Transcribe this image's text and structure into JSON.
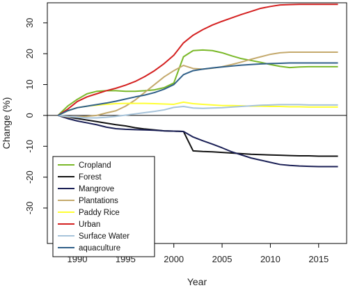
{
  "chart_data": {
    "type": "line",
    "title": "",
    "xlabel": "Year",
    "ylabel": "Change (%)",
    "xlim": [
      1986.9,
      2017.9
    ],
    "ylim": [
      -41.5,
      36.5
    ],
    "x_ticks": [
      1990,
      1995,
      2000,
      2005,
      2010,
      2015
    ],
    "y_ticks": [
      -30,
      -20,
      -10,
      0,
      10,
      20,
      30
    ],
    "zero_line": true,
    "grid": false,
    "legend_position": "bottom-left",
    "series": [
      {
        "name": "Cropland",
        "color": "#7ab828",
        "x": [
          1988,
          1989,
          1990,
          1991,
          1992,
          1993,
          1994,
          1995,
          1996,
          1997,
          1998,
          1999,
          2000,
          2001,
          2002,
          2003,
          2004,
          2005,
          2006,
          2007,
          2008,
          2009,
          2010,
          2011,
          2012,
          2013,
          2014,
          2015,
          2016,
          2017
        ],
        "y": [
          0,
          3,
          5.2,
          7,
          7.8,
          8,
          8,
          7.8,
          7.8,
          8,
          8.3,
          9,
          10.5,
          19,
          21,
          21.2,
          21,
          20.3,
          19.3,
          18.4,
          17.8,
          17.2,
          16.5,
          15.9,
          15.5,
          15.7,
          15.8,
          15.8,
          15.8,
          15.8
        ]
      },
      {
        "name": "Forest",
        "color": "#111111",
        "x": [
          1988,
          1989,
          1990,
          1991,
          1992,
          1993,
          1994,
          1995,
          1996,
          1997,
          1998,
          1999,
          2000,
          2001,
          2002,
          2003,
          2004,
          2005,
          2006,
          2007,
          2008,
          2009,
          2010,
          2011,
          2012,
          2013,
          2014,
          2015,
          2016,
          2017
        ],
        "y": [
          0,
          -0.5,
          -1,
          -1.5,
          -2,
          -2.5,
          -3,
          -3.4,
          -4,
          -4.4,
          -4.7,
          -5,
          -5.1,
          -5.2,
          -11.5,
          -11.7,
          -11.8,
          -12,
          -12.2,
          -12.4,
          -12.6,
          -12.7,
          -12.8,
          -12.9,
          -13,
          -13.1,
          -13.1,
          -13.2,
          -13.2,
          -13.2
        ]
      },
      {
        "name": "Mangrove",
        "color": "#1a1f55",
        "x": [
          1988,
          1989,
          1990,
          1991,
          1992,
          1993,
          1994,
          1995,
          1996,
          1997,
          1998,
          1999,
          2000,
          2001,
          2002,
          2003,
          2004,
          2005,
          2006,
          2007,
          2008,
          2009,
          2010,
          2011,
          2012,
          2013,
          2014,
          2015,
          2016,
          2017
        ],
        "y": [
          0,
          -1,
          -1.8,
          -2.4,
          -3,
          -3.8,
          -4.3,
          -4.5,
          -4.6,
          -4.7,
          -4.8,
          -5,
          -5.1,
          -5.2,
          -7,
          -8.2,
          -9.3,
          -10.5,
          -11.8,
          -12.8,
          -13.8,
          -14.5,
          -15.2,
          -15.9,
          -16.2,
          -16.4,
          -16.5,
          -16.6,
          -16.6,
          -16.6
        ]
      },
      {
        "name": "Plantations",
        "color": "#c4a96c",
        "x": [
          1988,
          1989,
          1990,
          1991,
          1992,
          1993,
          1994,
          1995,
          1996,
          1997,
          1998,
          1999,
          2000,
          2001,
          2002,
          2003,
          2004,
          2005,
          2006,
          2007,
          2008,
          2009,
          2010,
          2011,
          2012,
          2013,
          2014,
          2015,
          2016,
          2017
        ],
        "y": [
          0,
          -0.5,
          -0.5,
          -0.3,
          0,
          0.8,
          1.5,
          3,
          5,
          7.5,
          10,
          12.5,
          14.5,
          16.2,
          15.2,
          15,
          15.3,
          15.8,
          16.5,
          17.3,
          18.2,
          19,
          19.8,
          20.3,
          20.5,
          20.5,
          20.5,
          20.5,
          20.5,
          20.5
        ]
      },
      {
        "name": "Paddy Rice",
        "color": "#ffff33",
        "x": [
          1988,
          1989,
          1990,
          1991,
          1992,
          1993,
          1994,
          1995,
          1996,
          1997,
          1998,
          1999,
          2000,
          2001,
          2002,
          2003,
          2004,
          2005,
          2006,
          2007,
          2008,
          2009,
          2010,
          2011,
          2012,
          2013,
          2014,
          2015,
          2016,
          2017
        ],
        "y": [
          0,
          1.5,
          2.5,
          3,
          3.3,
          3.6,
          3.8,
          3.9,
          3.9,
          3.9,
          3.8,
          3.7,
          3.6,
          4.3,
          3.8,
          3.6,
          3.4,
          3.2,
          3.2,
          3.1,
          3,
          3,
          2.9,
          2.9,
          2.8,
          2.8,
          2.7,
          2.7,
          2.7,
          2.7
        ]
      },
      {
        "name": "Urban",
        "color": "#d42020",
        "x": [
          1988,
          1989,
          1990,
          1991,
          1992,
          1993,
          1994,
          1995,
          1996,
          1997,
          1998,
          1999,
          2000,
          2001,
          2002,
          2003,
          2004,
          2005,
          2006,
          2007,
          2008,
          2009,
          2010,
          2011,
          2012,
          2013,
          2014,
          2015,
          2016,
          2017
        ],
        "y": [
          0,
          2,
          4.5,
          6,
          7,
          8,
          8.8,
          9.8,
          11,
          12.6,
          14.5,
          16.8,
          19.5,
          23.5,
          26,
          27.8,
          29.3,
          30.5,
          31.6,
          32.7,
          33.7,
          34.7,
          35.3,
          35.8,
          35.9,
          36,
          36,
          36,
          36,
          36
        ]
      },
      {
        "name": "Surface Water",
        "color": "#a6c3da",
        "x": [
          1988,
          1989,
          1990,
          1991,
          1992,
          1993,
          1994,
          1995,
          1996,
          1997,
          1998,
          1999,
          2000,
          2001,
          2002,
          2003,
          2004,
          2005,
          2006,
          2007,
          2008,
          2009,
          2010,
          2011,
          2012,
          2013,
          2014,
          2015,
          2016,
          2017
        ],
        "y": [
          0,
          -0.3,
          -0.6,
          -0.8,
          -0.8,
          -0.6,
          -0.3,
          0.1,
          0.5,
          0.9,
          1.3,
          1.8,
          2.6,
          2.9,
          2.4,
          2.3,
          2.4,
          2.5,
          2.7,
          2.9,
          3.1,
          3.3,
          3.4,
          3.5,
          3.5,
          3.5,
          3.4,
          3.4,
          3.4,
          3.4
        ]
      },
      {
        "name": "aquaculture",
        "color": "#2f5f88",
        "x": [
          1988,
          1989,
          1990,
          1991,
          1992,
          1993,
          1994,
          1995,
          1996,
          1997,
          1998,
          1999,
          2000,
          2001,
          2002,
          2003,
          2004,
          2005,
          2006,
          2007,
          2008,
          2009,
          2010,
          2011,
          2012,
          2013,
          2014,
          2015,
          2016,
          2017
        ],
        "y": [
          0,
          1.5,
          2.5,
          3,
          3.5,
          4,
          4.6,
          5.3,
          6,
          6.6,
          7.4,
          8.5,
          10,
          13.2,
          14.5,
          15,
          15.4,
          15.7,
          16,
          16.3,
          16.5,
          16.7,
          16.8,
          16.9,
          17,
          17,
          17,
          17,
          17,
          17
        ]
      }
    ]
  }
}
